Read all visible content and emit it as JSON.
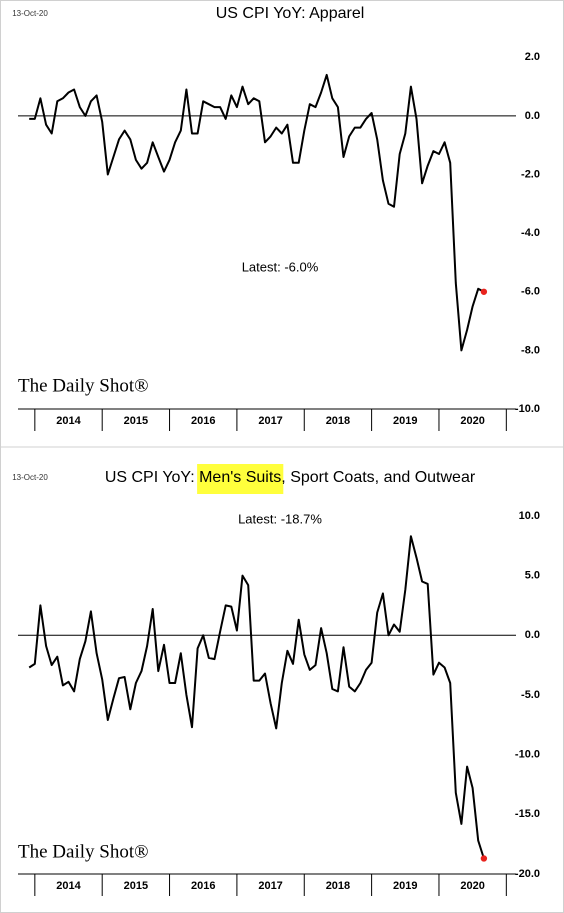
{
  "chart_data": [
    {
      "type": "line",
      "date": "13-Oct-20",
      "title_parts": [
        "US CPI YoY: Apparel"
      ],
      "annotation": "Latest:  -6.0%",
      "source": "The Daily Shot®",
      "color": "#000000",
      "marker_color": "#e8231e",
      "xlim": [
        2013.75,
        2021.5
      ],
      "xticks": [
        {
          "value": 2014.5,
          "label": "2014"
        },
        {
          "value": 2015.5,
          "label": "2015"
        },
        {
          "value": 2016.5,
          "label": "2016"
        },
        {
          "value": 2017.5,
          "label": "2017"
        },
        {
          "value": 2018.5,
          "label": "2018"
        },
        {
          "value": 2019.5,
          "label": "2019"
        },
        {
          "value": 2020.5,
          "label": "2020"
        }
      ],
      "ylim": [
        -10,
        3
      ],
      "yticks": [
        {
          "value": -10,
          "label": "-10.0"
        },
        {
          "value": -8,
          "label": "-8.0"
        },
        {
          "value": -6,
          "label": "-6.0"
        },
        {
          "value": -4,
          "label": "-4.0"
        },
        {
          "value": -2,
          "label": "-2.0"
        },
        {
          "value": 0,
          "label": "0.0"
        },
        {
          "value": 2,
          "label": "2.0"
        }
      ],
      "x": [
        2013.917,
        2014.0,
        2014.083,
        2014.167,
        2014.25,
        2014.333,
        2014.417,
        2014.5,
        2014.583,
        2014.667,
        2014.75,
        2014.833,
        2014.917,
        2015.0,
        2015.083,
        2015.167,
        2015.25,
        2015.333,
        2015.417,
        2015.5,
        2015.583,
        2015.667,
        2015.75,
        2015.833,
        2015.917,
        2016.0,
        2016.083,
        2016.167,
        2016.25,
        2016.333,
        2016.417,
        2016.5,
        2016.583,
        2016.667,
        2016.75,
        2016.833,
        2016.917,
        2017.0,
        2017.083,
        2017.167,
        2017.25,
        2017.333,
        2017.417,
        2017.5,
        2017.583,
        2017.667,
        2017.75,
        2017.833,
        2017.917,
        2018.0,
        2018.083,
        2018.167,
        2018.25,
        2018.333,
        2018.417,
        2018.5,
        2018.583,
        2018.667,
        2018.75,
        2018.833,
        2018.917,
        2019.0,
        2019.083,
        2019.167,
        2019.25,
        2019.333,
        2019.417,
        2019.5,
        2019.583,
        2019.667,
        2019.75,
        2019.833,
        2019.917,
        2020.0,
        2020.083,
        2020.167,
        2020.25,
        2020.333,
        2020.417,
        2020.5,
        2020.583,
        2020.667
      ],
      "values": [
        -0.1,
        -0.1,
        0.6,
        -0.3,
        -0.6,
        0.5,
        0.6,
        0.8,
        0.9,
        0.3,
        0,
        0.5,
        0.7,
        -0.2,
        -2.0,
        -1.4,
        -0.8,
        -0.5,
        -0.8,
        -1.5,
        -1.8,
        -1.6,
        -0.9,
        -1.4,
        -1.9,
        -1.5,
        -0.9,
        -0.5,
        0.9,
        -0.6,
        -0.6,
        0.5,
        0.4,
        0.3,
        0.3,
        -0.1,
        0.7,
        0.3,
        1.0,
        0.4,
        0.6,
        0.5,
        -0.9,
        -0.7,
        -0.4,
        -0.6,
        -0.3,
        -1.6,
        -1.6,
        -0.5,
        0.4,
        0.3,
        0.8,
        1.4,
        0.6,
        0.3,
        -1.4,
        -0.7,
        -0.4,
        -0.4,
        -0.1,
        0.1,
        -0.8,
        -2.2,
        -3.0,
        -3.1,
        -1.3,
        -0.6,
        1.0,
        -0.1,
        -2.3,
        -1.7,
        -1.2,
        -1.3,
        -0.9,
        -1.6,
        -5.7,
        -8.0,
        -7.3,
        -6.5,
        -5.9,
        -6.0
      ]
    },
    {
      "type": "line",
      "date": "13-Oct-20",
      "title_parts": [
        "US CPI YoY: ",
        "Men's Suits",
        ", Sport Coats, and Outwear"
      ],
      "title_highlight": 1,
      "highlight_color": "#ffff3c",
      "annotation": "Latest:  -18.7%",
      "source": "The Daily Shot®",
      "color": "#000000",
      "marker_color": "#e8231e",
      "xlim": [
        2013.75,
        2021.5
      ],
      "xticks": [
        {
          "value": 2014.5,
          "label": "2014"
        },
        {
          "value": 2015.5,
          "label": "2015"
        },
        {
          "value": 2016.5,
          "label": "2016"
        },
        {
          "value": 2017.5,
          "label": "2017"
        },
        {
          "value": 2018.5,
          "label": "2018"
        },
        {
          "value": 2019.5,
          "label": "2019"
        },
        {
          "value": 2020.5,
          "label": "2020"
        }
      ],
      "ylim": [
        -20,
        12
      ],
      "yticks": [
        {
          "value": -20,
          "label": "-20.0"
        },
        {
          "value": -15,
          "label": "-15.0"
        },
        {
          "value": -10,
          "label": "-10.0"
        },
        {
          "value": -5,
          "label": "-5.0"
        },
        {
          "value": 0,
          "label": "0.0"
        },
        {
          "value": 5,
          "label": "5.0"
        },
        {
          "value": 10,
          "label": "10.0"
        }
      ],
      "x": [
        2013.917,
        2014.0,
        2014.083,
        2014.167,
        2014.25,
        2014.333,
        2014.417,
        2014.5,
        2014.583,
        2014.667,
        2014.75,
        2014.833,
        2014.917,
        2015.0,
        2015.083,
        2015.167,
        2015.25,
        2015.333,
        2015.417,
        2015.5,
        2015.583,
        2015.667,
        2015.75,
        2015.833,
        2015.917,
        2016.0,
        2016.083,
        2016.167,
        2016.25,
        2016.333,
        2016.417,
        2016.5,
        2016.583,
        2016.667,
        2016.75,
        2016.833,
        2016.917,
        2017.0,
        2017.083,
        2017.167,
        2017.25,
        2017.333,
        2017.417,
        2017.5,
        2017.583,
        2017.667,
        2017.75,
        2017.833,
        2017.917,
        2018.0,
        2018.083,
        2018.167,
        2018.25,
        2018.333,
        2018.417,
        2018.5,
        2018.583,
        2018.667,
        2018.75,
        2018.833,
        2018.917,
        2019.0,
        2019.083,
        2019.167,
        2019.25,
        2019.333,
        2019.417,
        2019.5,
        2019.583,
        2019.667,
        2019.75,
        2019.833,
        2019.917,
        2020.0,
        2020.083,
        2020.167,
        2020.25,
        2020.333,
        2020.417,
        2020.5,
        2020.583,
        2020.667
      ],
      "values": [
        -2.7,
        -2.4,
        2.5,
        -0.9,
        -2.5,
        -1.8,
        -4.2,
        -3.9,
        -4.7,
        -2.0,
        -0.5,
        2.0,
        -1.5,
        -3.7,
        -7.1,
        -5.3,
        -3.6,
        -3.5,
        -6.2,
        -4.0,
        -3.0,
        -0.9,
        2.2,
        -3.0,
        -0.8,
        -4.0,
        -4.0,
        -1.5,
        -5.0,
        -7.7,
        -1.1,
        0.0,
        -1.9,
        -2.0,
        0.3,
        2.5,
        2.4,
        0.4,
        5.0,
        4.2,
        -3.8,
        -3.8,
        -3.2,
        -5.7,
        -7.8,
        -4.0,
        -1.3,
        -2.4,
        1.3,
        -1.6,
        -2.9,
        -2.5,
        0.6,
        -1.5,
        -4.5,
        -4.7,
        -1.0,
        -4.3,
        -4.7,
        -4.0,
        -2.9,
        -2.3,
        1.9,
        3.5,
        0.0,
        0.9,
        0.3,
        3.8,
        8.3,
        6.5,
        4.5,
        4.3,
        -3.3,
        -2.3,
        -2.7,
        -4.0,
        -13.2,
        -15.8,
        -11.0,
        -12.8,
        -17.2,
        -18.7
      ]
    }
  ]
}
